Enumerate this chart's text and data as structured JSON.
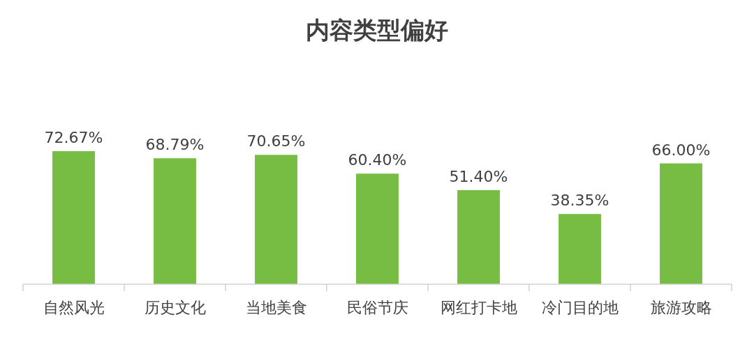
{
  "chart_data": {
    "type": "bar",
    "title": "内容类型偏好",
    "categories": [
      "自然风光",
      "历史文化",
      "当地美食",
      "民俗节庆",
      "网红打卡地",
      "冷门目的地",
      "旅游攻略"
    ],
    "values": [
      72.67,
      68.79,
      70.65,
      60.4,
      51.4,
      38.35,
      66.0
    ],
    "value_labels": [
      "72.67%",
      "68.79%",
      "70.65%",
      "60.40%",
      "51.40%",
      "38.35%",
      "66.00%"
    ],
    "color": "#77bd43",
    "tick_labels": "x"
  }
}
